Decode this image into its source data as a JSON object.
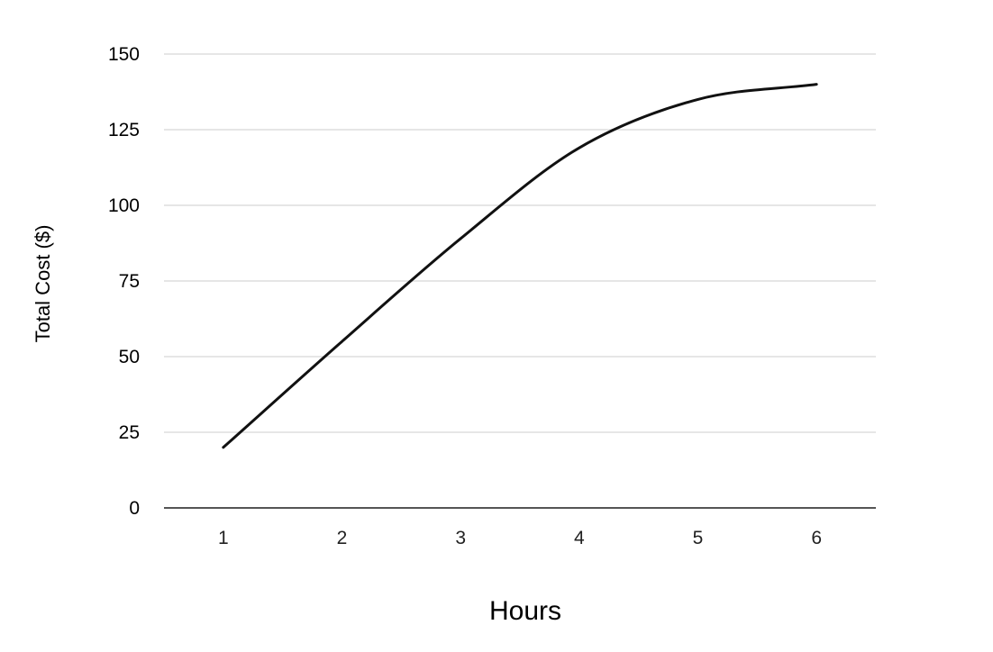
{
  "chart_data": {
    "type": "line",
    "title": "",
    "xlabel": "Hours",
    "ylabel": "Total Cost ($)",
    "x": [
      1,
      2,
      3,
      4,
      5,
      6
    ],
    "x_tick_labels": [
      "1",
      "2",
      "3",
      "4",
      "5",
      "6"
    ],
    "y_tick_values": [
      0,
      25,
      50,
      75,
      100,
      125,
      150
    ],
    "y_tick_labels": [
      "0",
      "25",
      "50",
      "75",
      "100",
      "125",
      "150"
    ],
    "ylim": [
      0,
      150
    ],
    "xlim": [
      0.5,
      6.5
    ],
    "grid": true,
    "legend": "none",
    "series": [
      {
        "values": [
          20,
          55,
          89,
          119,
          135,
          140
        ],
        "color": "#111111"
      }
    ],
    "colors": {
      "grid": "#e6e6e6",
      "baseline": "#555555",
      "line": "#111111"
    }
  }
}
